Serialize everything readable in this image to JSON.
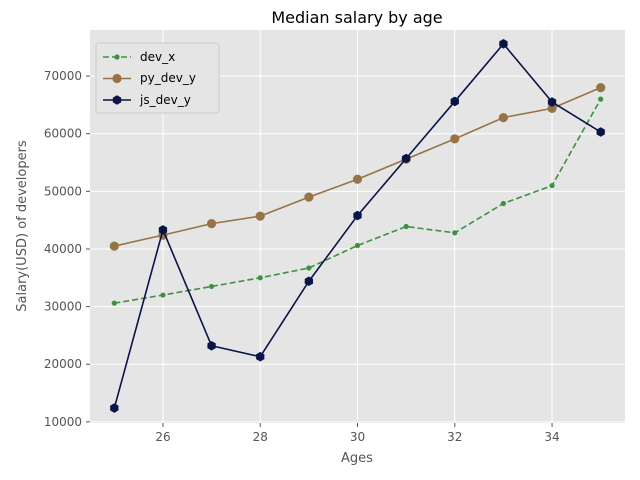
{
  "chart_data": {
    "type": "line",
    "title": "Median salary by age",
    "xlabel": "Ages",
    "ylabel": "Salary(USD) of developers",
    "x": [
      25,
      26,
      27,
      28,
      29,
      30,
      31,
      32,
      33,
      34,
      35
    ],
    "xlim": [
      24.5,
      35.5
    ],
    "ylim": [
      9800,
      78000
    ],
    "xticks": [
      26,
      28,
      30,
      32,
      34
    ],
    "yticks": [
      10000,
      20000,
      30000,
      40000,
      50000,
      60000,
      70000
    ],
    "grid": true,
    "legend_position": "top-left",
    "series": [
      {
        "name": "dev_x",
        "color": "#3d9140",
        "style": "dashed",
        "marker": "dot",
        "values": [
          30600,
          32000,
          33500,
          35000,
          36700,
          40600,
          43900,
          42800,
          47900,
          51000,
          66000
        ]
      },
      {
        "name": "py_dev_y",
        "color": "#977448",
        "style": "solid",
        "marker": "circle",
        "values": [
          40500,
          42400,
          44400,
          45700,
          49000,
          52100,
          55600,
          59100,
          62800,
          64400,
          68000
        ]
      },
      {
        "name": "js_dev_y",
        "color": "#0b1446",
        "style": "solid",
        "marker": "hexagon",
        "values": [
          12400,
          43300,
          23200,
          21300,
          34400,
          45800,
          55700,
          65600,
          75600,
          65500,
          60300
        ]
      }
    ]
  }
}
